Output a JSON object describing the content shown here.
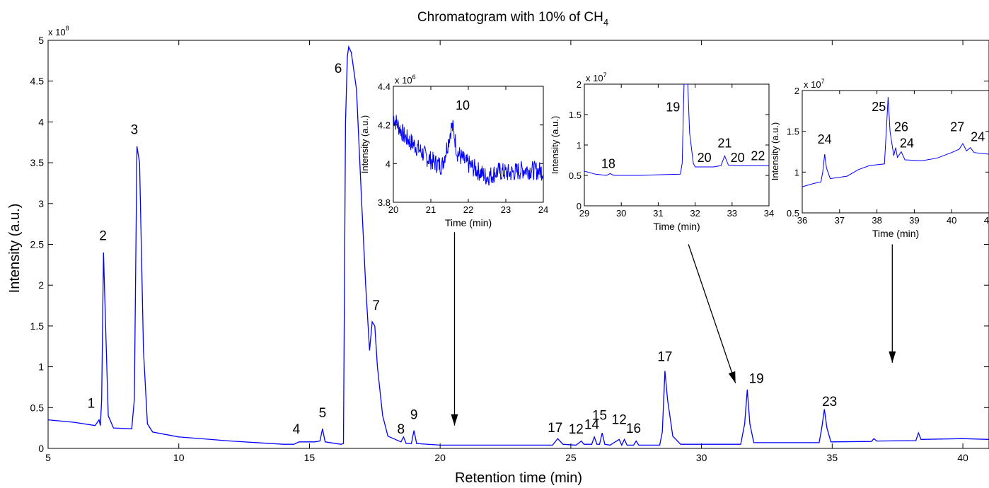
{
  "chart_data": {
    "type": "line",
    "title": "Chromatogram with 10% of CH",
    "title_subscript": "4",
    "xlabel": "Retention time (min)",
    "ylabel": "Intensity (a.u.)",
    "y_multiplier_base": "x 10",
    "y_multiplier_exp": "8",
    "xlim": [
      5,
      41
    ],
    "ylim": [
      0,
      500000000
    ],
    "x_ticks": [
      5,
      10,
      15,
      20,
      25,
      30,
      35,
      40
    ],
    "x_tick_labels": [
      "5",
      "10",
      "15",
      "20",
      "25",
      "30",
      "35",
      "40"
    ],
    "y_ticks": [
      0,
      50000000,
      100000000,
      150000000,
      200000000,
      250000000,
      300000000,
      350000000,
      400000000,
      450000000,
      500000000
    ],
    "y_tick_labels": [
      "0",
      "0.5",
      "1",
      "1.5",
      "2",
      "2.5",
      "3",
      "3.5",
      "4",
      "4.5",
      "5"
    ],
    "line_color": "#0000ff",
    "series": [
      {
        "points": [
          [
            5.0,
            35000000
          ],
          [
            6.0,
            32000000
          ],
          [
            6.8,
            28000000
          ],
          [
            6.95,
            35000000
          ],
          [
            7.0,
            28000000
          ],
          [
            7.05,
            60000000
          ],
          [
            7.12,
            240000000
          ],
          [
            7.2,
            150000000
          ],
          [
            7.3,
            40000000
          ],
          [
            7.5,
            25000000
          ],
          [
            8.2,
            24000000
          ],
          [
            8.3,
            60000000
          ],
          [
            8.4,
            370000000
          ],
          [
            8.5,
            350000000
          ],
          [
            8.65,
            120000000
          ],
          [
            8.8,
            30000000
          ],
          [
            9.0,
            20000000
          ],
          [
            10.0,
            14000000
          ],
          [
            12.0,
            9000000
          ],
          [
            14.0,
            5000000
          ],
          [
            14.4,
            5000000
          ],
          [
            14.6,
            8000000
          ],
          [
            15.2,
            8000000
          ],
          [
            15.4,
            9000000
          ],
          [
            15.5,
            24000000
          ],
          [
            15.6,
            8000000
          ],
          [
            16.2,
            5000000
          ],
          [
            16.3,
            6000000
          ],
          [
            16.38,
            400000000
          ],
          [
            16.45,
            480000000
          ],
          [
            16.5,
            492000000
          ],
          [
            16.6,
            485000000
          ],
          [
            16.8,
            440000000
          ],
          [
            17.0,
            300000000
          ],
          [
            17.15,
            200000000
          ],
          [
            17.3,
            120000000
          ],
          [
            17.4,
            155000000
          ],
          [
            17.5,
            150000000
          ],
          [
            17.6,
            100000000
          ],
          [
            17.8,
            40000000
          ],
          [
            18.0,
            15000000
          ],
          [
            18.5,
            8000000
          ],
          [
            18.6,
            14000000
          ],
          [
            18.7,
            6000000
          ],
          [
            18.9,
            6000000
          ],
          [
            19.0,
            22000000
          ],
          [
            19.1,
            6000000
          ],
          [
            20.0,
            4000000
          ],
          [
            24.3,
            4000000
          ],
          [
            24.5,
            12000000
          ],
          [
            24.7,
            5000000
          ],
          [
            25.2,
            4000000
          ],
          [
            25.4,
            9000000
          ],
          [
            25.5,
            5000000
          ],
          [
            25.8,
            5000000
          ],
          [
            25.9,
            14000000
          ],
          [
            26.0,
            5000000
          ],
          [
            26.1,
            5000000
          ],
          [
            26.2,
            19000000
          ],
          [
            26.3,
            5000000
          ],
          [
            26.5,
            4000000
          ],
          [
            26.85,
            11000000
          ],
          [
            26.95,
            4000000
          ],
          [
            27.05,
            11000000
          ],
          [
            27.15,
            4000000
          ],
          [
            27.4,
            4000000
          ],
          [
            27.5,
            9000000
          ],
          [
            27.6,
            4000000
          ],
          [
            28.4,
            4000000
          ],
          [
            28.5,
            20000000
          ],
          [
            28.6,
            95000000
          ],
          [
            28.7,
            60000000
          ],
          [
            28.9,
            15000000
          ],
          [
            29.2,
            5000000
          ],
          [
            31.5,
            5000000
          ],
          [
            31.65,
            30000000
          ],
          [
            31.75,
            72000000
          ],
          [
            31.85,
            30000000
          ],
          [
            32.0,
            7000000
          ],
          [
            34.5,
            7000000
          ],
          [
            34.6,
            25000000
          ],
          [
            34.7,
            48000000
          ],
          [
            34.8,
            25000000
          ],
          [
            34.95,
            8000000
          ],
          [
            36.5,
            8500000
          ],
          [
            36.6,
            12000000
          ],
          [
            36.7,
            9000000
          ],
          [
            38.2,
            9500000
          ],
          [
            38.3,
            19000000
          ],
          [
            38.4,
            11000000
          ],
          [
            40.0,
            12000000
          ],
          [
            41.0,
            11000000
          ]
        ]
      }
    ],
    "peak_labels": [
      {
        "text": "1",
        "x": 6.65,
        "y": 50000000
      },
      {
        "text": "2",
        "x": 7.1,
        "y": 255000000
      },
      {
        "text": "3",
        "x": 8.3,
        "y": 385000000
      },
      {
        "text": "4",
        "x": 14.5,
        "y": 18000000
      },
      {
        "text": "5",
        "x": 15.5,
        "y": 38000000
      },
      {
        "text": "6",
        "x": 16.1,
        "y": 460000000
      },
      {
        "text": "7",
        "x": 17.55,
        "y": 170000000
      },
      {
        "text": "8",
        "x": 18.5,
        "y": 18000000
      },
      {
        "text": "9",
        "x": 19.0,
        "y": 36000000
      },
      {
        "text": "17",
        "x": 24.4,
        "y": 20000000
      },
      {
        "text": "12",
        "x": 25.2,
        "y": 18000000
      },
      {
        "text": "14",
        "x": 25.8,
        "y": 24000000
      },
      {
        "text": "15",
        "x": 26.1,
        "y": 35000000
      },
      {
        "text": "12",
        "x": 26.85,
        "y": 30000000
      },
      {
        "text": "16",
        "x": 27.4,
        "y": 19000000
      },
      {
        "text": "17",
        "x": 28.6,
        "y": 107000000
      },
      {
        "text": "19",
        "x": 32.1,
        "y": 80000000
      },
      {
        "text": "23",
        "x": 34.9,
        "y": 52000000
      }
    ],
    "arrows": [
      {
        "from": [
          20.55,
          265000000
        ],
        "to": [
          20.55,
          28000000
        ]
      },
      {
        "from": [
          29.5,
          250000000
        ],
        "to": [
          31.3,
          80000000
        ]
      },
      {
        "from": [
          37.3,
          250000000
        ],
        "to": [
          37.3,
          105000000
        ]
      }
    ],
    "insets": [
      {
        "xlabel": "Time (min)",
        "ylabel": "Intensity (a.u.)",
        "y_multiplier_base": "x 10",
        "y_multiplier_exp": "6",
        "xlim": [
          20,
          24
        ],
        "ylim": [
          3.8,
          4.4
        ],
        "x_ticks": [
          20,
          21,
          22,
          23,
          24
        ],
        "x_tick_labels": [
          "20",
          "21",
          "22",
          "23",
          "24"
        ],
        "y_ticks": [
          3.8,
          4.0,
          4.2,
          4.4
        ],
        "y_tick_labels": [
          "3.8",
          "4",
          "4.2",
          "4.4"
        ],
        "noisy": true,
        "points": [
          [
            20.0,
            4.24
          ],
          [
            20.3,
            4.14
          ],
          [
            20.6,
            4.09
          ],
          [
            20.9,
            4.03
          ],
          [
            21.15,
            4.0
          ],
          [
            21.3,
            3.99
          ],
          [
            21.45,
            4.1
          ],
          [
            21.55,
            4.19
          ],
          [
            21.6,
            4.18
          ],
          [
            21.7,
            4.06
          ],
          [
            21.9,
            4.01
          ],
          [
            22.2,
            3.97
          ],
          [
            22.5,
            3.93
          ],
          [
            22.8,
            3.96
          ],
          [
            23.1,
            3.95
          ],
          [
            23.5,
            3.97
          ],
          [
            24.0,
            3.96
          ]
        ],
        "peak_labels": [
          {
            "text": "10",
            "x": 21.85,
            "y": 4.28
          }
        ]
      },
      {
        "xlabel": "Time (min)",
        "ylabel": "Intensity (a.u.)",
        "y_multiplier_base": "x 10",
        "y_multiplier_exp": "7",
        "xlim": [
          29,
          34
        ],
        "ylim": [
          0,
          2
        ],
        "x_ticks": [
          29,
          30,
          31,
          32,
          33,
          34
        ],
        "x_tick_labels": [
          "29",
          "30",
          "31",
          "32",
          "33",
          "34"
        ],
        "y_ticks": [
          0,
          0.5,
          1,
          1.5,
          2
        ],
        "y_tick_labels": [
          "0",
          "0.5",
          "1",
          "1.5",
          "2"
        ],
        "noisy": false,
        "points": [
          [
            29.0,
            0.57
          ],
          [
            29.3,
            0.52
          ],
          [
            29.6,
            0.5
          ],
          [
            29.7,
            0.53
          ],
          [
            29.8,
            0.5
          ],
          [
            30.5,
            0.5
          ],
          [
            31.0,
            0.51
          ],
          [
            31.6,
            0.52
          ],
          [
            31.65,
            0.7
          ],
          [
            31.7,
            2.0
          ],
          [
            31.8,
            2.0
          ],
          [
            31.85,
            1.2
          ],
          [
            31.95,
            0.7
          ],
          [
            32.0,
            0.64
          ],
          [
            32.5,
            0.64
          ],
          [
            32.7,
            0.66
          ],
          [
            32.8,
            0.82
          ],
          [
            32.9,
            0.67
          ],
          [
            33.1,
            0.66
          ],
          [
            33.5,
            0.66
          ],
          [
            34.0,
            0.66
          ]
        ],
        "peak_labels": [
          {
            "text": "18",
            "x": 29.65,
            "y": 0.62
          },
          {
            "text": "19",
            "x": 31.4,
            "y": 1.55
          },
          {
            "text": "20",
            "x": 32.25,
            "y": 0.72
          },
          {
            "text": "21",
            "x": 32.8,
            "y": 0.96
          },
          {
            "text": "20",
            "x": 33.15,
            "y": 0.72
          },
          {
            "text": "22",
            "x": 33.7,
            "y": 0.75
          }
        ]
      },
      {
        "xlabel": "Time (min)",
        "ylabel": "Intensity (a.u.)",
        "y_multiplier_base": "x 10",
        "y_multiplier_exp": "7",
        "xlim": [
          36,
          41
        ],
        "ylim": [
          0.5,
          2
        ],
        "x_ticks": [
          36,
          37,
          38,
          39,
          40,
          41
        ],
        "x_tick_labels": [
          "36",
          "37",
          "38",
          "39",
          "40",
          "41"
        ],
        "y_ticks": [
          0.5,
          1,
          1.5,
          2
        ],
        "y_tick_labels": [
          "0.5",
          "1",
          "1.5",
          "2"
        ],
        "noisy": false,
        "points": [
          [
            36.0,
            0.82
          ],
          [
            36.3,
            0.86
          ],
          [
            36.5,
            0.88
          ],
          [
            36.55,
            1.0
          ],
          [
            36.6,
            1.22
          ],
          [
            36.65,
            1.05
          ],
          [
            36.75,
            0.92
          ],
          [
            37.2,
            0.95
          ],
          [
            37.5,
            1.03
          ],
          [
            37.8,
            1.08
          ],
          [
            38.2,
            1.1
          ],
          [
            38.25,
            1.5
          ],
          [
            38.3,
            1.92
          ],
          [
            38.35,
            1.5
          ],
          [
            38.45,
            1.2
          ],
          [
            38.5,
            1.3
          ],
          [
            38.55,
            1.18
          ],
          [
            38.65,
            1.25
          ],
          [
            38.75,
            1.15
          ],
          [
            39.2,
            1.14
          ],
          [
            39.6,
            1.17
          ],
          [
            40.0,
            1.24
          ],
          [
            40.2,
            1.28
          ],
          [
            40.3,
            1.35
          ],
          [
            40.4,
            1.26
          ],
          [
            40.5,
            1.3
          ],
          [
            40.6,
            1.24
          ],
          [
            41.0,
            1.22
          ]
        ],
        "peak_labels": [
          {
            "text": "24",
            "x": 36.6,
            "y": 1.35
          },
          {
            "text": "25",
            "x": 38.05,
            "y": 1.75
          },
          {
            "text": "26",
            "x": 38.65,
            "y": 1.5
          },
          {
            "text": "24",
            "x": 38.8,
            "y": 1.3
          },
          {
            "text": "27",
            "x": 40.15,
            "y": 1.5
          },
          {
            "text": "24",
            "x": 40.7,
            "y": 1.38
          }
        ]
      }
    ]
  }
}
